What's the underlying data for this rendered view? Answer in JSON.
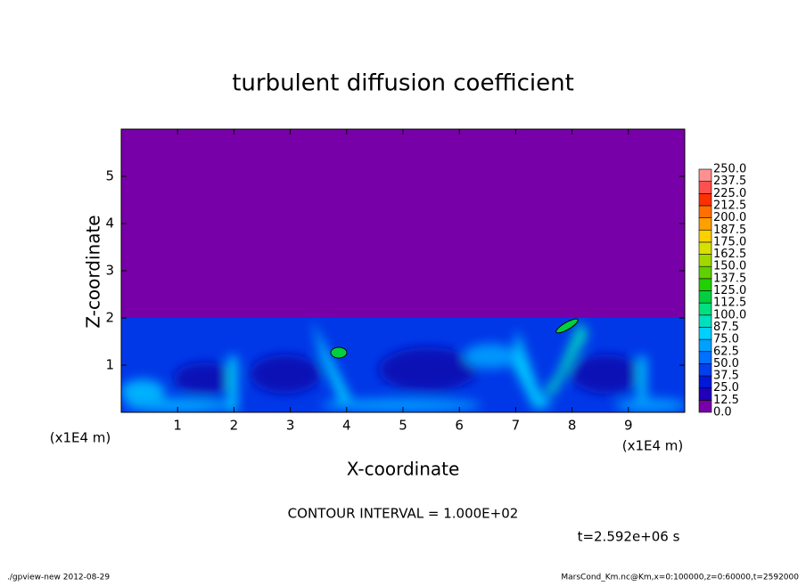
{
  "chart_data": {
    "type": "contour",
    "title": "turbulent diffusion coefficient",
    "xlabel": "X-coordinate",
    "ylabel": "Z-coordinate",
    "x_unit": "(x1E4 m)",
    "xlim": [
      0,
      10
    ],
    "ylim": [
      0,
      6
    ],
    "xticks": [
      1,
      2,
      3,
      4,
      5,
      6,
      7,
      8,
      9
    ],
    "yticks": [
      1,
      2,
      3,
      4,
      5
    ],
    "levels": [
      {
        "value": 0,
        "label": "0.0"
      },
      12.5,
      {
        "value": 25,
        "label": "25.0"
      },
      37.5,
      {
        "value": 50,
        "label": "50.0"
      },
      62.5,
      {
        "value": 75,
        "label": "75.0"
      },
      87.5,
      {
        "value": 100,
        "label": "100.0"
      },
      112.5,
      {
        "value": 125,
        "label": "125.0"
      },
      137.5,
      {
        "value": 150,
        "label": "150.0"
      },
      162.5,
      {
        "value": 175,
        "label": "175.0"
      },
      187.5,
      {
        "value": 200,
        "label": "200.0"
      },
      212.5,
      {
        "value": 225,
        "label": "225.0"
      },
      237.5,
      {
        "value": 250,
        "label": "250.0"
      }
    ],
    "colors": [
      "#7800a8",
      "#2000b8",
      "#0018d8",
      "#0040f0",
      "#0070ff",
      "#00a0ff",
      "#00d0ff",
      "#00e0c0",
      "#00e080",
      "#00d040",
      "#20d000",
      "#60d000",
      "#a0d800",
      "#d8e000",
      "#ffd000",
      "#ffa000",
      "#ff7000",
      "#ff3000",
      "#ff5050",
      "#ff9090"
    ],
    "contour_interval": "CONTOUR INTERVAL = 1.000E+02",
    "time_label": "t=2.592e+06 s",
    "footer_left": "./gpview-new  2012-08-29",
    "footer_right": "MarsCond_Km.nc@Km,x=0:100000,z=0:60000,t=2592000"
  }
}
